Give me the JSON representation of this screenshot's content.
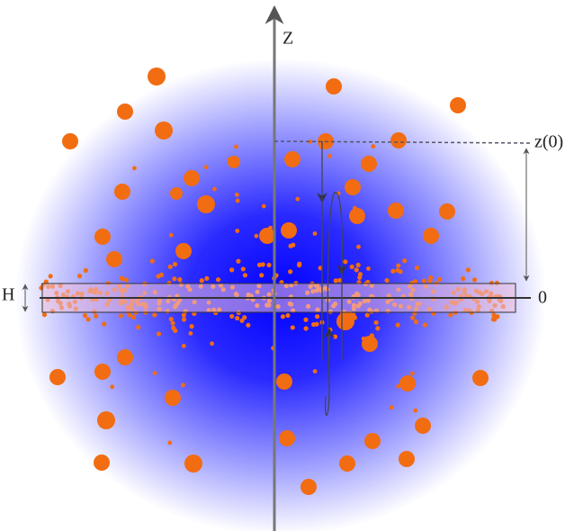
{
  "labels": {
    "z_axis": "Z",
    "z0": "z(0)",
    "zero": "0",
    "h": "H"
  }
}
